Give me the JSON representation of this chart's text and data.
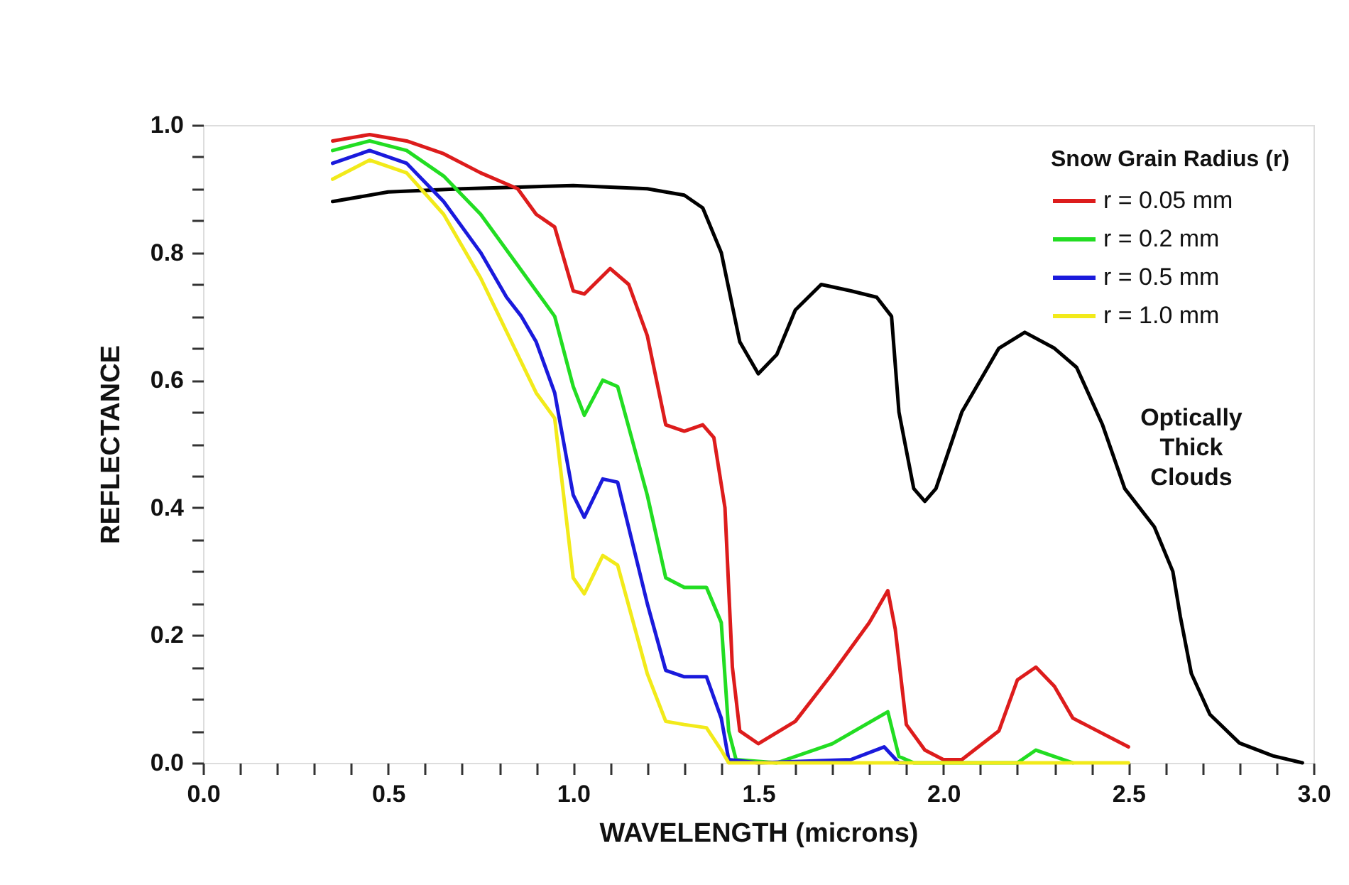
{
  "chart_data": {
    "type": "line",
    "xlabel": "WAVELENGTH (microns)",
    "ylabel": "REFLECTANCE",
    "legend_title": "Snow Grain Radius (r)",
    "xlim": [
      0.0,
      3.0
    ],
    "ylim": [
      0.0,
      1.0
    ],
    "xticks": [
      {
        "value": 0.0,
        "label": "0.0"
      },
      {
        "value": 0.1,
        "label": null
      },
      {
        "value": 0.2,
        "label": null
      },
      {
        "value": 0.3,
        "label": null
      },
      {
        "value": 0.4,
        "label": null
      },
      {
        "value": 0.5,
        "label": "0.5"
      },
      {
        "value": 0.6,
        "label": null
      },
      {
        "value": 0.7,
        "label": null
      },
      {
        "value": 0.8,
        "label": null
      },
      {
        "value": 0.9,
        "label": null
      },
      {
        "value": 1.0,
        "label": "1.0"
      },
      {
        "value": 1.1,
        "label": null
      },
      {
        "value": 1.2,
        "label": null
      },
      {
        "value": 1.3,
        "label": null
      },
      {
        "value": 1.4,
        "label": null
      },
      {
        "value": 1.5,
        "label": "1.5"
      },
      {
        "value": 1.6,
        "label": null
      },
      {
        "value": 1.7,
        "label": null
      },
      {
        "value": 1.8,
        "label": null
      },
      {
        "value": 1.9,
        "label": null
      },
      {
        "value": 2.0,
        "label": "2.0"
      },
      {
        "value": 2.1,
        "label": null
      },
      {
        "value": 2.2,
        "label": null
      },
      {
        "value": 2.3,
        "label": null
      },
      {
        "value": 2.4,
        "label": null
      },
      {
        "value": 2.5,
        "label": "2.5"
      },
      {
        "value": 2.6,
        "label": null
      },
      {
        "value": 2.7,
        "label": null
      },
      {
        "value": 2.8,
        "label": null
      },
      {
        "value": 2.9,
        "label": null
      },
      {
        "value": 3.0,
        "label": "3.0"
      }
    ],
    "yticks": [
      {
        "value": 0.0,
        "label": "0.0"
      },
      {
        "value": 0.05,
        "label": null
      },
      {
        "value": 0.1,
        "label": null
      },
      {
        "value": 0.15,
        "label": null
      },
      {
        "value": 0.2,
        "label": "0.2"
      },
      {
        "value": 0.25,
        "label": null
      },
      {
        "value": 0.3,
        "label": null
      },
      {
        "value": 0.35,
        "label": null
      },
      {
        "value": 0.4,
        "label": "0.4"
      },
      {
        "value": 0.45,
        "label": null
      },
      {
        "value": 0.5,
        "label": null
      },
      {
        "value": 0.55,
        "label": null
      },
      {
        "value": 0.6,
        "label": "0.6"
      },
      {
        "value": 0.65,
        "label": null
      },
      {
        "value": 0.7,
        "label": null
      },
      {
        "value": 0.75,
        "label": null
      },
      {
        "value": 0.8,
        "label": "0.8"
      },
      {
        "value": 0.85,
        "label": null
      },
      {
        "value": 0.9,
        "label": null
      },
      {
        "value": 0.95,
        "label": null
      },
      {
        "value": 1.0,
        "label": "1.0"
      }
    ],
    "grid": false,
    "legend": "top right",
    "marker": "none",
    "line_style": "solid",
    "annotations": [
      "Optically Thick Clouds"
    ],
    "series": [
      {
        "color": "#000000",
        "x": [
          0.35,
          0.5,
          0.7,
          1.0,
          1.2,
          1.3,
          1.35,
          1.4,
          1.45,
          1.5,
          1.55,
          1.6,
          1.67,
          1.75,
          1.82,
          1.86,
          1.88,
          1.92,
          1.95,
          1.98,
          2.05,
          2.15,
          2.22,
          2.3,
          2.36,
          2.43,
          2.49,
          2.57,
          2.62,
          2.64,
          2.67,
          2.72,
          2.8,
          2.89,
          2.97
        ],
        "values": [
          0.88,
          0.895,
          0.9,
          0.905,
          0.9,
          0.89,
          0.87,
          0.8,
          0.66,
          0.61,
          0.64,
          0.71,
          0.75,
          0.74,
          0.73,
          0.7,
          0.55,
          0.43,
          0.41,
          0.43,
          0.55,
          0.65,
          0.675,
          0.65,
          0.62,
          0.53,
          0.43,
          0.37,
          0.3,
          0.23,
          0.14,
          0.076,
          0.031,
          0.011,
          0.0
        ]
      },
      {
        "name": "r = 0.05 mm",
        "color": "#dd1c1c",
        "x": [
          0.35,
          0.45,
          0.55,
          0.65,
          0.75,
          0.85,
          0.9,
          0.95,
          1.0,
          1.03,
          1.1,
          1.15,
          1.2,
          1.25,
          1.3,
          1.35,
          1.38,
          1.41,
          1.43,
          1.45,
          1.5,
          1.6,
          1.7,
          1.8,
          1.85,
          1.87,
          1.9,
          1.95,
          2.0,
          2.05,
          2.15,
          2.2,
          2.25,
          2.3,
          2.35,
          2.4,
          2.5
        ],
        "values": [
          0.975,
          0.985,
          0.975,
          0.955,
          0.925,
          0.9,
          0.86,
          0.84,
          0.74,
          0.735,
          0.775,
          0.75,
          0.67,
          0.53,
          0.52,
          0.53,
          0.51,
          0.4,
          0.15,
          0.05,
          0.03,
          0.065,
          0.14,
          0.22,
          0.27,
          0.21,
          0.06,
          0.02,
          0.005,
          0.005,
          0.05,
          0.13,
          0.15,
          0.12,
          0.07,
          0.055,
          0.025
        ]
      },
      {
        "name": "r = 0.2 mm",
        "color": "#22dd22",
        "x": [
          0.35,
          0.45,
          0.55,
          0.65,
          0.75,
          0.85,
          0.9,
          0.95,
          1.0,
          1.03,
          1.08,
          1.12,
          1.2,
          1.25,
          1.3,
          1.36,
          1.4,
          1.42,
          1.44,
          1.55,
          1.7,
          1.85,
          1.88,
          1.92,
          2.2,
          2.25,
          2.3,
          2.35
        ],
        "values": [
          0.96,
          0.975,
          0.96,
          0.92,
          0.86,
          0.78,
          0.74,
          0.7,
          0.59,
          0.545,
          0.6,
          0.59,
          0.42,
          0.29,
          0.275,
          0.275,
          0.22,
          0.05,
          0.005,
          0.0,
          0.03,
          0.08,
          0.01,
          0.0,
          0.0,
          0.02,
          0.01,
          0.0
        ]
      },
      {
        "name": "r = 0.5 mm",
        "color": "#1a1adc",
        "x": [
          0.35,
          0.45,
          0.55,
          0.65,
          0.75,
          0.82,
          0.86,
          0.9,
          0.95,
          1.0,
          1.03,
          1.08,
          1.12,
          1.2,
          1.25,
          1.3,
          1.36,
          1.4,
          1.42,
          1.5,
          1.75,
          1.84,
          1.88,
          1.9
        ],
        "values": [
          0.94,
          0.96,
          0.94,
          0.88,
          0.8,
          0.73,
          0.7,
          0.66,
          0.58,
          0.42,
          0.385,
          0.445,
          0.44,
          0.25,
          0.145,
          0.135,
          0.135,
          0.07,
          0.005,
          0.0,
          0.005,
          0.025,
          0.0,
          0.0
        ]
      },
      {
        "name": "r = 1.0 mm",
        "color": "#f2ea1a",
        "x": [
          0.35,
          0.45,
          0.55,
          0.65,
          0.75,
          0.8,
          0.85,
          0.9,
          0.95,
          1.0,
          1.03,
          1.08,
          1.12,
          1.2,
          1.25,
          1.3,
          1.36,
          1.4,
          1.42,
          2.5
        ],
        "values": [
          0.915,
          0.945,
          0.925,
          0.86,
          0.76,
          0.7,
          0.64,
          0.58,
          0.54,
          0.29,
          0.265,
          0.325,
          0.31,
          0.14,
          0.065,
          0.06,
          0.055,
          0.02,
          0.0,
          0.0
        ]
      }
    ]
  }
}
